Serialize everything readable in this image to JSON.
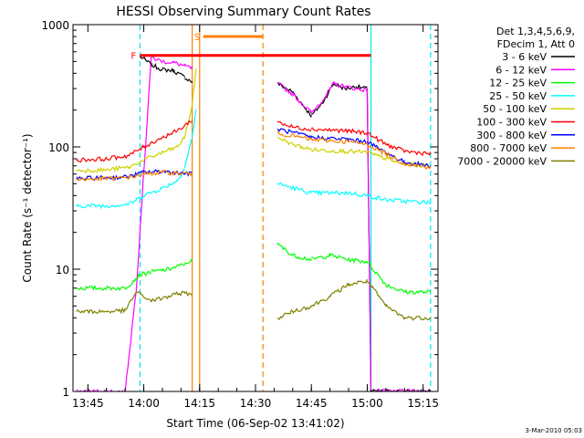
{
  "chart_data": {
    "type": "line",
    "title": "HESSI Observing Summary Count Rates",
    "xlabel": "Start Time (06-Sep-02 13:41:02)",
    "ylabel": "Count Rate (s⁻¹ detector⁻¹)",
    "yscale": "log",
    "xlim": [
      "13:41",
      "15:19"
    ],
    "ylim": [
      1,
      1000
    ],
    "x_ticks": [
      "13:45",
      "14:00",
      "14:15",
      "14:30",
      "14:45",
      "15:00",
      "15:15"
    ],
    "y_ticks": [
      "1",
      "10",
      "100",
      "1000"
    ],
    "legend_position": "right",
    "legend_header": [
      "Det 1,3,4,5,6,9,",
      "FDecim 1, Att 0"
    ],
    "timestamp": "3-Mar-2010 05:03",
    "flags": [
      {
        "label": "F",
        "color": "#ff0000",
        "start": "13:59",
        "end": "15:01",
        "value": 560
      },
      {
        "label": "S",
        "color": "#ff8000",
        "start": "14:16",
        "end": "14:32",
        "value": 800
      }
    ],
    "data_gaps": [
      {
        "start": "14:15",
        "end": "14:35"
      }
    ],
    "vertical_markers": [
      {
        "time": "13:59",
        "color": "#00e5e5",
        "style": "dashed"
      },
      {
        "time": "15:01",
        "color": "#00e5e5",
        "style": "solid"
      },
      {
        "time": "15:17",
        "color": "#00e5e5",
        "style": "dashed"
      },
      {
        "time": "14:13",
        "color": "#ff8000",
        "style": "solid"
      },
      {
        "time": "14:15",
        "color": "#ff8000",
        "style": "solid"
      },
      {
        "time": "14:32",
        "color": "#ff8000",
        "style": "dashed"
      }
    ],
    "series": [
      {
        "name": "3 - 6 keV",
        "color": "#000000",
        "x": [
          "13:59",
          "14:02",
          "14:05",
          "14:08",
          "14:11",
          "14:13",
          "14:36",
          "14:40",
          "14:45",
          "14:48",
          "14:51",
          "14:54",
          "14:57",
          "15:00",
          "15:01",
          "15:17"
        ],
        "y": [
          550,
          470,
          430,
          420,
          370,
          340,
          330,
          280,
          180,
          230,
          330,
          300,
          310,
          300,
          1,
          1
        ]
      },
      {
        "name": "6 - 12 keV",
        "color": "#ff00ff",
        "x": [
          "13:42",
          "13:55",
          "13:58",
          "14:02",
          "14:05",
          "14:08",
          "14:11",
          "14:13",
          "14:36",
          "14:40",
          "14:45",
          "14:48",
          "14:51",
          "14:54",
          "14:57",
          "15:00",
          "15:01",
          "15:17"
        ],
        "y": [
          1,
          1,
          7,
          540,
          500,
          490,
          460,
          440,
          330,
          270,
          190,
          240,
          330,
          310,
          300,
          290,
          1,
          1
        ]
      },
      {
        "name": "12 - 25 keV",
        "color": "#00ff00",
        "x": [
          "13:42",
          "13:55",
          "13:59",
          "14:02",
          "14:07",
          "14:11",
          "14:13",
          "14:36",
          "14:40",
          "14:45",
          "14:50",
          "14:55",
          "15:00",
          "15:05",
          "15:10",
          "15:17"
        ],
        "y": [
          7,
          7,
          9,
          9.5,
          10,
          11,
          12,
          16,
          13,
          12,
          13,
          12,
          11.5,
          7.5,
          6.5,
          6.5
        ]
      },
      {
        "name": "25 - 50 keV",
        "color": "#00ffff",
        "x": [
          "13:42",
          "13:50",
          "13:56",
          "14:00",
          "14:05",
          "14:09",
          "14:11",
          "14:13",
          "14:14",
          "14:36",
          "14:45",
          "14:55",
          "15:00",
          "15:05",
          "15:10",
          "15:17"
        ],
        "y": [
          33,
          33,
          34,
          40,
          46,
          53,
          68,
          120,
          200,
          50,
          42,
          42,
          40,
          37,
          36,
          35
        ]
      },
      {
        "name": "50 - 100 keV",
        "color": "#d0d000",
        "x": [
          "13:42",
          "13:50",
          "13:56",
          "14:00",
          "14:05",
          "14:09",
          "14:11",
          "14:13",
          "14:14",
          "14:36",
          "14:40",
          "14:45",
          "14:55",
          "15:00",
          "15:05",
          "15:10",
          "15:17"
        ],
        "y": [
          64,
          65,
          68,
          78,
          90,
          100,
          120,
          220,
          420,
          120,
          105,
          95,
          92,
          90,
          80,
          72,
          70
        ]
      },
      {
        "name": "100 - 300 keV",
        "color": "#ff0000",
        "x": [
          "13:42",
          "13:50",
          "13:56",
          "14:00",
          "14:05",
          "14:09",
          "14:11",
          "14:13",
          "14:36",
          "14:40",
          "14:45",
          "14:55",
          "15:00",
          "15:05",
          "15:10",
          "15:17"
        ],
        "y": [
          78,
          80,
          85,
          100,
          120,
          135,
          150,
          165,
          160,
          145,
          140,
          135,
          130,
          105,
          92,
          88
        ]
      },
      {
        "name": "300 - 800 keV",
        "color": "#0000ff",
        "x": [
          "13:42",
          "13:50",
          "13:56",
          "14:00",
          "14:05",
          "14:09",
          "14:13",
          "14:36",
          "14:45",
          "14:55",
          "15:00",
          "15:05",
          "15:10",
          "15:17"
        ],
        "y": [
          55,
          56,
          57,
          62,
          63,
          62,
          60,
          140,
          120,
          115,
          110,
          90,
          75,
          70
        ]
      },
      {
        "name": "800 - 7000 keV",
        "color": "#ff8000",
        "x": [
          "13:42",
          "13:50",
          "13:56",
          "14:00",
          "14:05",
          "14:09",
          "14:13",
          "14:36",
          "14:45",
          "14:55",
          "15:00",
          "15:05",
          "15:10",
          "15:17"
        ],
        "y": [
          54,
          55,
          56,
          60,
          62,
          61,
          60,
          130,
          115,
          110,
          105,
          88,
          73,
          68
        ]
      },
      {
        "name": "7000 - 20000 keV",
        "color": "#808000",
        "x": [
          "13:42",
          "13:50",
          "13:55",
          "13:58",
          "14:02",
          "14:07",
          "14:11",
          "14:13",
          "14:36",
          "14:40",
          "14:45",
          "14:50",
          "14:55",
          "15:00",
          "15:05",
          "15:10",
          "15:17"
        ],
        "y": [
          4.5,
          4.5,
          4.6,
          6.5,
          5.5,
          6.0,
          6.5,
          6.0,
          4.0,
          4.5,
          5.0,
          6.0,
          7.5,
          8.0,
          5.0,
          4.0,
          4.0
        ]
      }
    ]
  }
}
